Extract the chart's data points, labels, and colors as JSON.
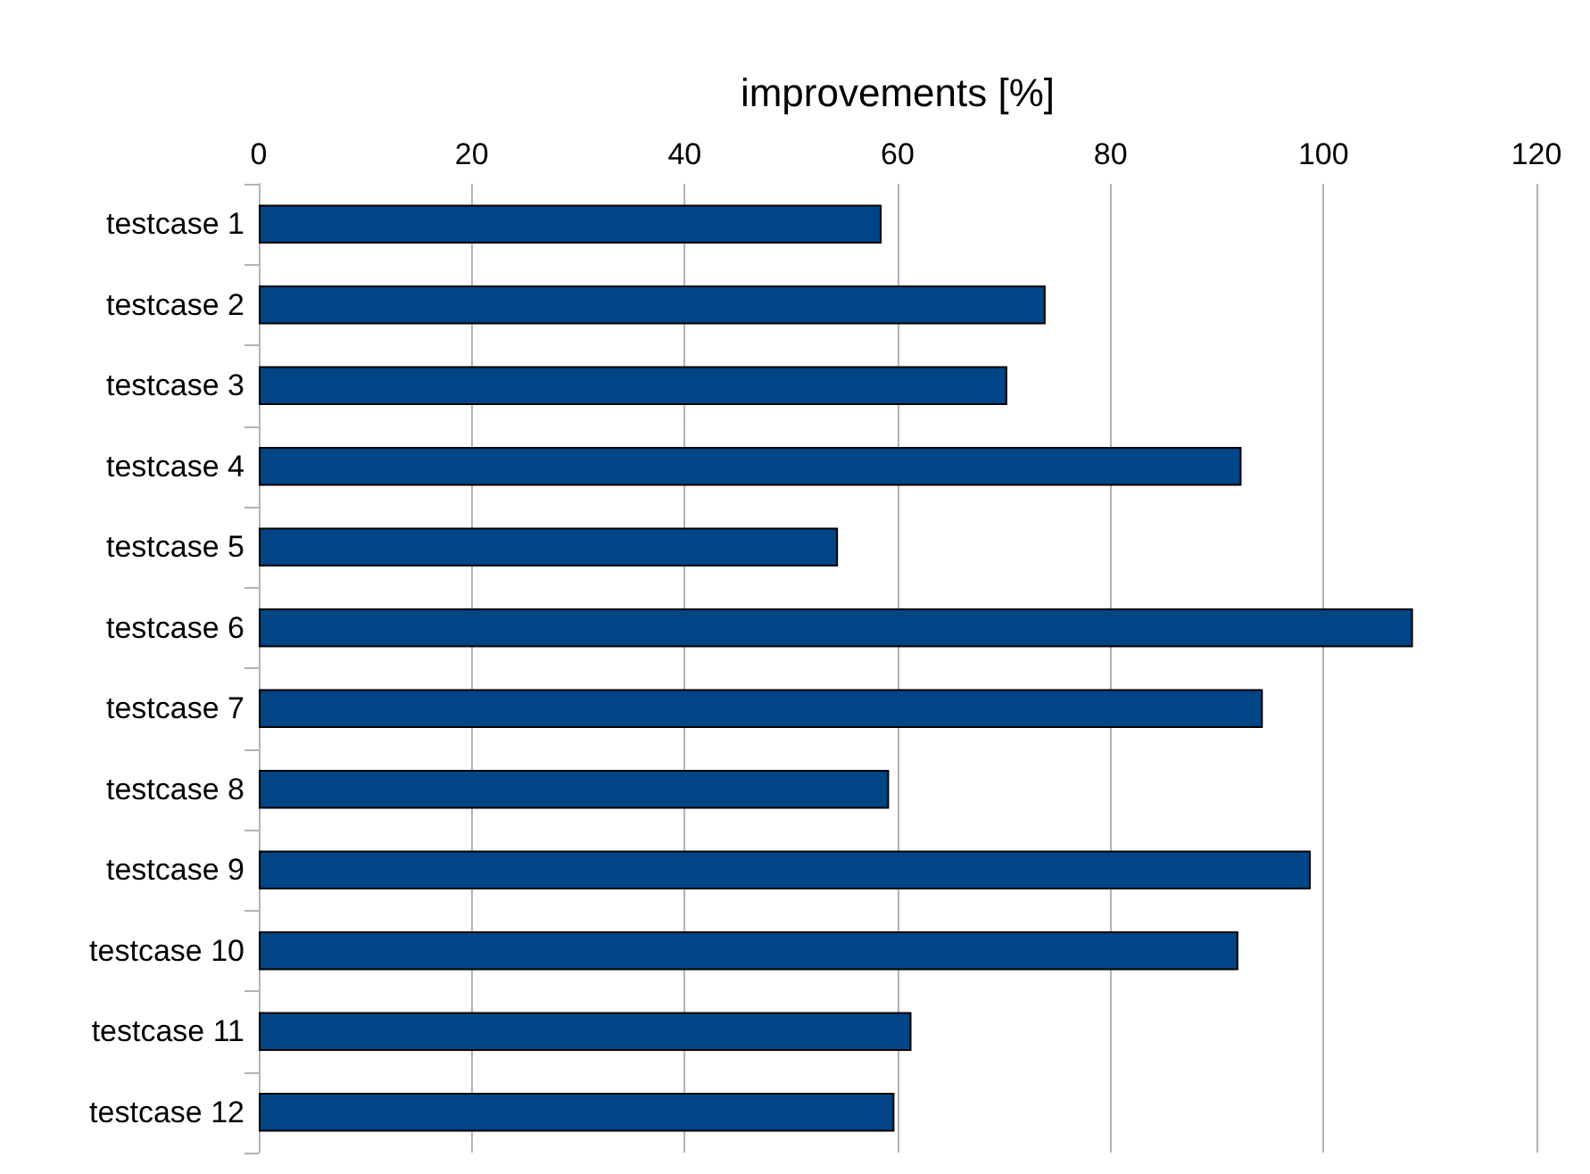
{
  "chart_data": {
    "type": "bar",
    "orientation": "horizontal",
    "xlabel": "improvements [%]",
    "categories": [
      "testcase 1",
      "testcase 2",
      "testcase 3",
      "testcase 4",
      "testcase 5",
      "testcase 6",
      "testcase 7",
      "testcase 8",
      "testcase 9",
      "testcase 10",
      "testcase 11",
      "testcase 12"
    ],
    "values": [
      58.5,
      73.9,
      70.3,
      92.3,
      54.4,
      108.4,
      94.3,
      59.2,
      98.8,
      92.0,
      61.3,
      59.7
    ],
    "color": "#004586",
    "xlim": [
      0,
      120
    ],
    "xticks": [
      0,
      20,
      40,
      60,
      80,
      100,
      120
    ],
    "grid": "x"
  }
}
